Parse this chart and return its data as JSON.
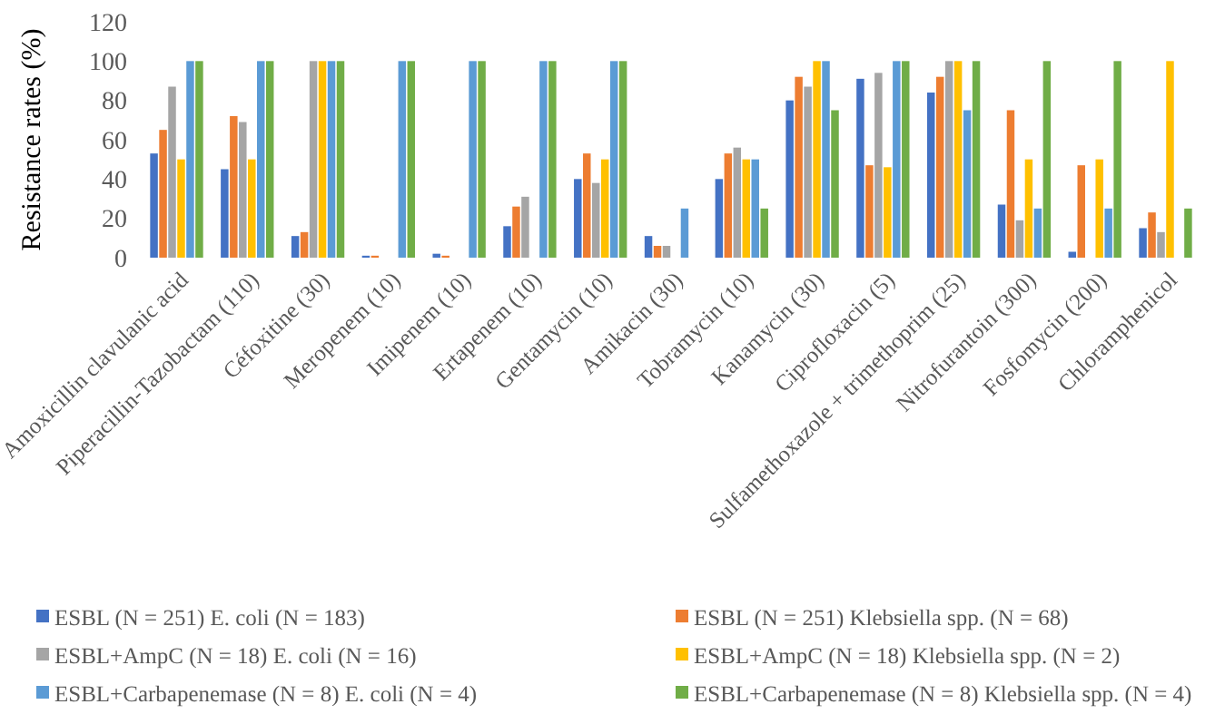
{
  "chart_data": {
    "type": "bar",
    "ylabel": "Resistance rates  (%)",
    "categories": [
      "Amoxicillin clavulanic acid",
      "Piperacillin-Tazobactam (110)",
      "Céfoxitine (30)",
      "Meropenem (10)",
      "Imipenem (10)",
      "Ertapenem (10)",
      "Gentamycin (10)",
      "Amikacin (30)",
      "Tobramycin (10)",
      "Kanamycin (30)",
      "Ciprofloxacin (5)",
      "Sulfamethoxazole + trimethoprim (25)",
      "Nitrofurantoin (300)",
      "Fosfomycin (200)",
      "Chloramphenicol"
    ],
    "series": [
      {
        "name": "ESBL  (N = 251) E. coli (N = 183)",
        "color": "#4472c4",
        "values": [
          53,
          45,
          11,
          1,
          2,
          16,
          40,
          11,
          40,
          80,
          91,
          84,
          27,
          3,
          15
        ]
      },
      {
        "name": "ESBL  (N = 251) Klebsiella spp. (N = 68)",
        "color": "#ed7d31",
        "values": [
          65,
          72,
          13,
          1,
          1,
          26,
          53,
          6,
          53,
          92,
          47,
          92,
          75,
          47,
          23
        ]
      },
      {
        "name": "ESBL+AmpC (N = 18) E. coli (N = 16)",
        "color": "#a5a5a5",
        "values": [
          87,
          69,
          100,
          0,
          0,
          31,
          38,
          6,
          56,
          87,
          94,
          100,
          19,
          0,
          13
        ]
      },
      {
        "name": "ESBL+AmpC (N = 18) Klebsiella spp. (N = 2)",
        "color": "#ffc000",
        "values": [
          50,
          50,
          100,
          0,
          0,
          0,
          50,
          0,
          50,
          100,
          46,
          100,
          50,
          50,
          100
        ]
      },
      {
        "name": "ESBL+Carbapenemase (N = 8) E. coli (N = 4)",
        "color": "#5b9bd5",
        "values": [
          100,
          100,
          100,
          100,
          100,
          100,
          100,
          25,
          50,
          100,
          100,
          75,
          25,
          25,
          0
        ]
      },
      {
        "name": "ESBL+Carbapenemase (N = 8) Klebsiella spp.  (N = 4)",
        "color": "#70ad47",
        "values": [
          100,
          100,
          100,
          100,
          100,
          100,
          100,
          0,
          25,
          75,
          100,
          100,
          100,
          100,
          25
        ]
      }
    ],
    "ylim": [
      0,
      120
    ],
    "yticks": [
      0,
      20,
      40,
      60,
      80,
      100,
      120
    ],
    "grid": false,
    "legend": "bottom"
  }
}
